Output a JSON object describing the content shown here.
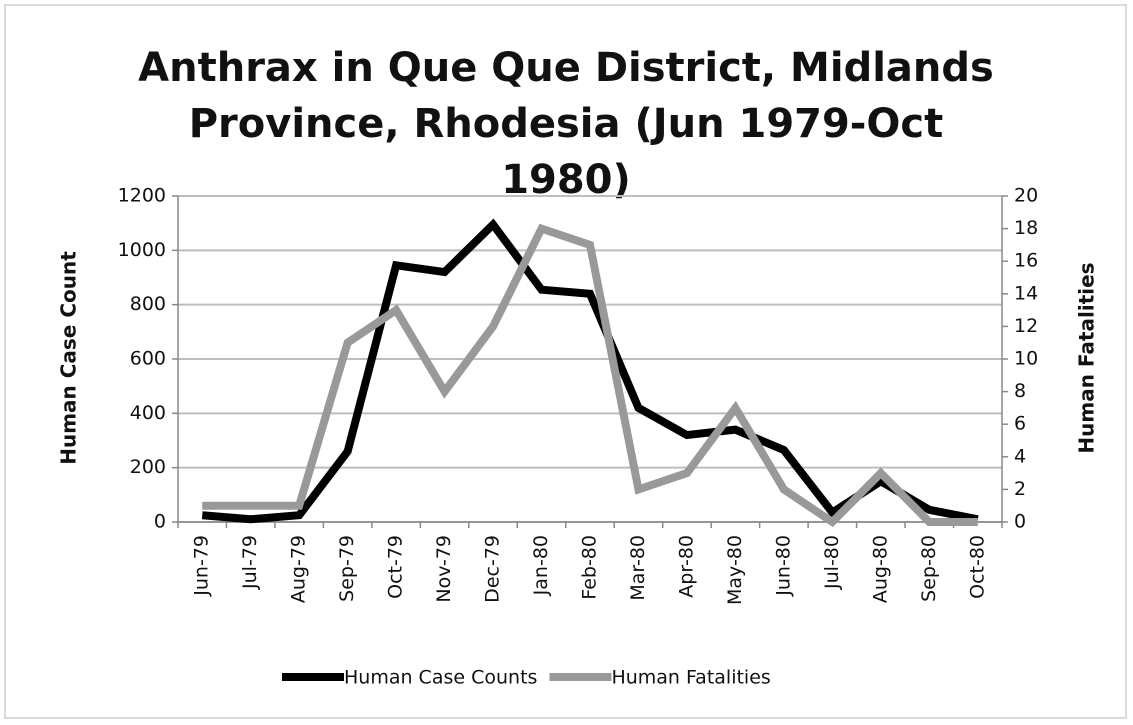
{
  "chart_data": {
    "type": "line",
    "title": "Anthrax in Que Que District, Midlands Province, Rhodesia (Jun 1979-Oct 1980)",
    "y_label": "Human Case Count",
    "y2_label": "Human Fatalities",
    "categories": [
      "Jun-79",
      "Jul-79",
      "Aug-79",
      "Sep-79",
      "Oct-79",
      "Nov-79",
      "Dec-79",
      "Jan-80",
      "Feb-80",
      "Mar-80",
      "Apr-80",
      "May-80",
      "Jun-80",
      "Jul-80",
      "Aug-80",
      "Sep-80",
      "Oct-80"
    ],
    "series": [
      {
        "name": "Human Case Counts",
        "color": "#000000",
        "values": [
          25,
          10,
          25,
          260,
          945,
          920,
          1095,
          855,
          840,
          420,
          320,
          340,
          265,
          35,
          150,
          45,
          10
        ]
      },
      {
        "name": "Human Fatalities",
        "color": "#999999",
        "axis": "y2",
        "values": [
          1,
          1,
          1,
          11,
          13,
          8,
          12,
          18,
          17,
          2,
          3,
          7,
          2,
          0,
          3,
          0,
          0
        ]
      }
    ],
    "ylim": [
      0,
      1200
    ],
    "yticks": [
      0,
      200,
      400,
      600,
      800,
      1000,
      1200
    ],
    "y2lim": [
      0,
      20
    ],
    "y2ticks": [
      0,
      2,
      4,
      6,
      8,
      10,
      12,
      14,
      16,
      18,
      20
    ],
    "grid": true,
    "legend": "bottom"
  }
}
